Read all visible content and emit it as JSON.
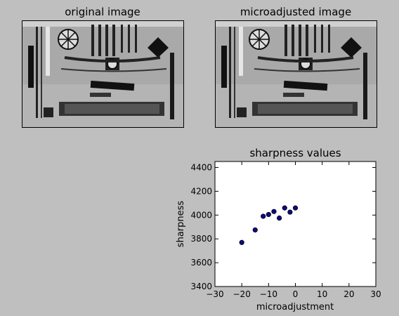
{
  "panels": {
    "left_title": "original image",
    "right_title": "microadjusted image"
  },
  "chart_data": {
    "type": "scatter",
    "title": "sharpness values",
    "xlabel": "microadjustment",
    "ylabel": "sharpness",
    "xlim": [
      -30,
      30
    ],
    "ylim": [
      3400,
      4450
    ],
    "xticks": [
      -30,
      -20,
      -10,
      0,
      10,
      20,
      30
    ],
    "yticks": [
      3400,
      3600,
      3800,
      4000,
      4200,
      4400
    ],
    "xtick_labels": [
      "−30",
      "−20",
      "−10",
      "0",
      "10",
      "20",
      "30"
    ],
    "ytick_labels": [
      "3400",
      "3600",
      "3800",
      "4000",
      "4200",
      "4400"
    ],
    "points": [
      {
        "x": -20,
        "y": 3770
      },
      {
        "x": -15,
        "y": 3875
      },
      {
        "x": -12,
        "y": 3990
      },
      {
        "x": -10,
        "y": 4005
      },
      {
        "x": -8,
        "y": 4030
      },
      {
        "x": -6,
        "y": 3975
      },
      {
        "x": -4,
        "y": 4060
      },
      {
        "x": -2,
        "y": 4025
      },
      {
        "x": 0,
        "y": 4060
      }
    ],
    "marker_color": "#0a0a8a",
    "grid": false
  }
}
